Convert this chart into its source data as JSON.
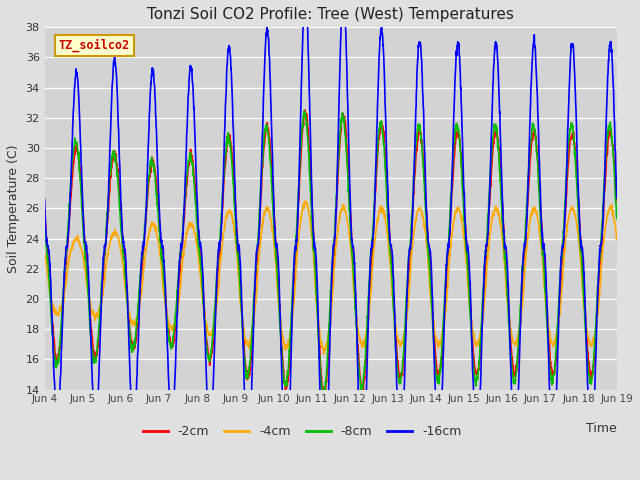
{
  "title": "Tonzi Soil CO2 Profile: Tree (West) Temperatures",
  "xlabel": "Time",
  "ylabel": "Soil Temperature (C)",
  "ylim": [
    14,
    38
  ],
  "yticks": [
    14,
    16,
    18,
    20,
    22,
    24,
    26,
    28,
    30,
    32,
    34,
    36,
    38
  ],
  "fig_bg_color": "#e0e0e0",
  "plot_bg_color": "#d3d3d3",
  "series": [
    {
      "label": "-2cm",
      "color": "#ff0000"
    },
    {
      "label": "-4cm",
      "color": "#ffaa00"
    },
    {
      "label": "-8cm",
      "color": "#00bb00"
    },
    {
      "label": "-16cm",
      "color": "#0000ff"
    }
  ],
  "legend_label": "TZ_soilco2",
  "legend_fg": "#cc0000",
  "legend_bg": "#ffffcc",
  "legend_border": "#cc9900",
  "xtick_labels": [
    "Jun 4",
    "Jun 5",
    "Jun 6",
    "Jun 7",
    "Jun 8",
    "Jun 9",
    "Jun 10",
    "Jun 11",
    "Jun 12",
    "Jun 13",
    "Jun 14",
    "Jun 15",
    "Jun 16",
    "Jun 17",
    "Jun 18",
    "Jun 19"
  ],
  "num_days": 15,
  "line_width": 1.2
}
